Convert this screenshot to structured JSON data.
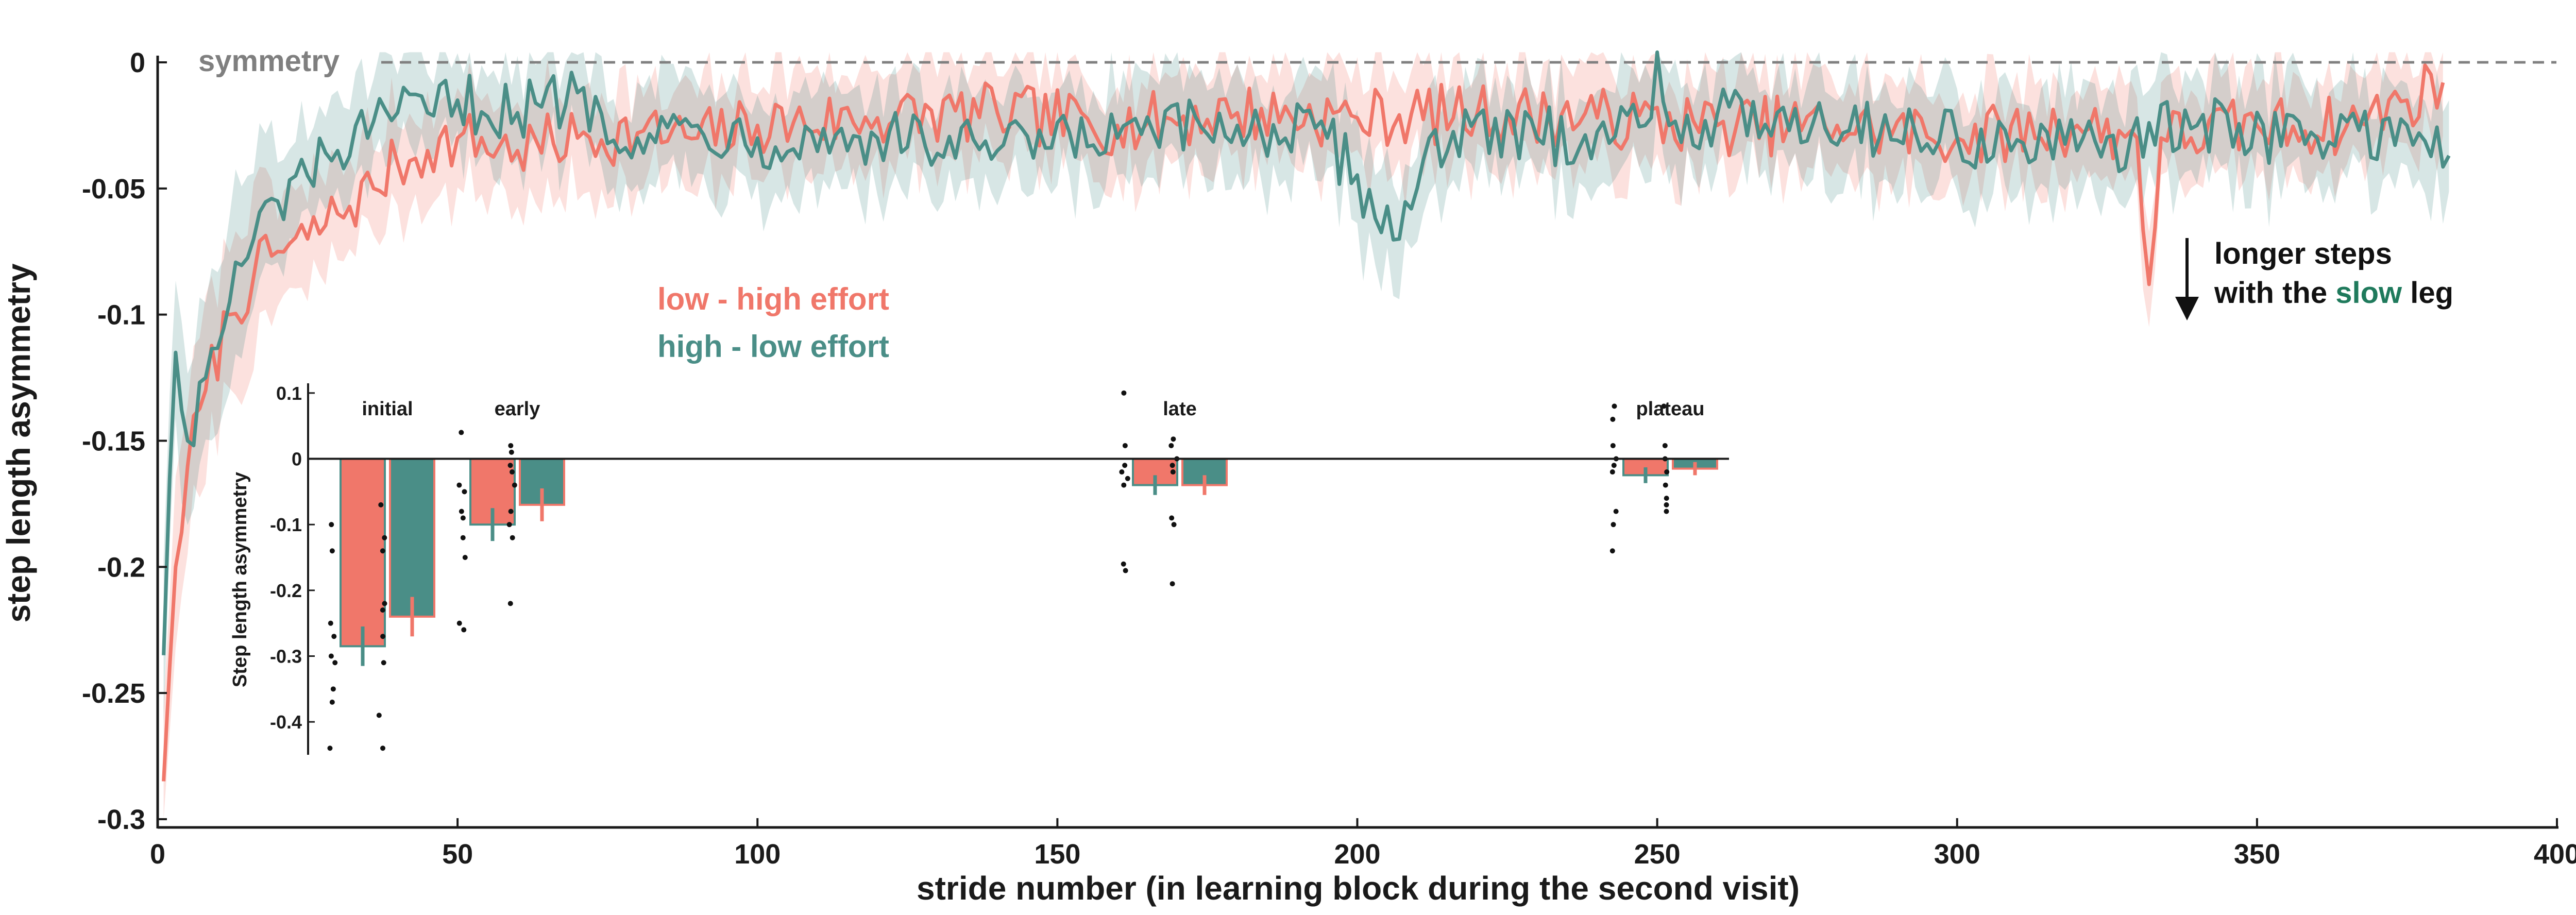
{
  "colors": {
    "low_high": "#F0776A",
    "high_low": "#4A8E87",
    "slow_word": "#1f7a5c",
    "symmetry_line": "#808080",
    "axis": "#1a1a1a"
  },
  "labels": {
    "symmetry": "symmetry",
    "legend_low_high": "low - high effort",
    "legend_high_low": "high - low effort",
    "annotation_line1": "longer steps",
    "annotation_line2_pre": "with the ",
    "annotation_line2_slow": "slow",
    "annotation_line2_post": " leg"
  },
  "chart_data": [
    {
      "type": "line",
      "xlabel": "stride number (in learning block during the second visit)",
      "ylabel": "step length asymmetry",
      "xlim": [
        0,
        400
      ],
      "ylim": [
        -0.3,
        0
      ],
      "xticks": [
        0,
        50,
        100,
        150,
        200,
        250,
        300,
        350,
        400
      ],
      "yticks": [
        -0.3,
        -0.25,
        -0.2,
        -0.15,
        -0.1,
        -0.05,
        0
      ],
      "reference_line": {
        "y": 0,
        "label": "symmetry",
        "style": "dashed"
      },
      "legend_placement": "center-left",
      "annotation": {
        "x": 339,
        "y": -0.1,
        "text": "longer steps with the slow leg",
        "arrow": "down"
      },
      "series": [
        {
          "name": "low - high effort",
          "color": "#F0776A",
          "shaded_error_band": true,
          "keypoints": [
            [
              1,
              -0.285
            ],
            [
              2,
              -0.24
            ],
            [
              3,
              -0.2
            ],
            [
              5,
              -0.16
            ],
            [
              8,
              -0.13
            ],
            [
              12,
              -0.1
            ],
            [
              16,
              -0.085
            ],
            [
              20,
              -0.075
            ],
            [
              25,
              -0.07
            ],
            [
              30,
              -0.06
            ],
            [
              36,
              -0.05
            ],
            [
              40,
              -0.04
            ],
            [
              45,
              -0.035
            ],
            [
              50,
              -0.03
            ],
            [
              60,
              -0.035
            ],
            [
              70,
              -0.03
            ],
            [
              80,
              -0.028
            ],
            [
              90,
              -0.03
            ],
            [
              100,
              -0.025
            ],
            [
              120,
              -0.022
            ],
            [
              140,
              -0.02
            ],
            [
              160,
              -0.025
            ],
            [
              180,
              -0.02
            ],
            [
              200,
              -0.022
            ],
            [
              220,
              -0.02
            ],
            [
              240,
              -0.022
            ],
            [
              260,
              -0.025
            ],
            [
              280,
              -0.025
            ],
            [
              300,
              -0.03
            ],
            [
              320,
              -0.025
            ],
            [
              330,
              -0.03
            ],
            [
              332,
              -0.088
            ],
            [
              334,
              -0.03
            ],
            [
              350,
              -0.025
            ],
            [
              365,
              -0.025
            ],
            [
              375,
              -0.015
            ],
            [
              381,
              -0.008
            ]
          ]
        },
        {
          "name": "high - low effort",
          "color": "#4A8E87",
          "shaded_error_band": true,
          "keypoints": [
            [
              1,
              -0.235
            ],
            [
              2,
              -0.165
            ],
            [
              3,
              -0.115
            ],
            [
              5,
              -0.15
            ],
            [
              8,
              -0.125
            ],
            [
              12,
              -0.095
            ],
            [
              16,
              -0.07
            ],
            [
              20,
              -0.055
            ],
            [
              25,
              -0.045
            ],
            [
              30,
              -0.035
            ],
            [
              35,
              -0.03
            ],
            [
              40,
              -0.02
            ],
            [
              45,
              -0.02
            ],
            [
              50,
              -0.015
            ],
            [
              60,
              -0.02
            ],
            [
              70,
              -0.012
            ],
            [
              80,
              -0.03
            ],
            [
              90,
              -0.025
            ],
            [
              100,
              -0.03
            ],
            [
              120,
              -0.03
            ],
            [
              140,
              -0.035
            ],
            [
              160,
              -0.03
            ],
            [
              180,
              -0.025
            ],
            [
              195,
              -0.03
            ],
            [
              207,
              -0.07
            ],
            [
              212,
              -0.03
            ],
            [
              230,
              -0.03
            ],
            [
              248,
              -0.025
            ],
            [
              250,
              0.005
            ],
            [
              252,
              -0.025
            ],
            [
              270,
              -0.02
            ],
            [
              300,
              -0.03
            ],
            [
              320,
              -0.035
            ],
            [
              340,
              -0.025
            ],
            [
              360,
              -0.03
            ],
            [
              375,
              -0.025
            ],
            [
              382,
              -0.037
            ]
          ]
        }
      ]
    },
    {
      "type": "bar",
      "ylabel": "Step length asymmetry",
      "ylim": [
        -0.45,
        0.15
      ],
      "yticks": [
        0.1,
        0,
        -0.1,
        -0.2,
        -0.3,
        -0.4
      ],
      "categories": [
        "initial",
        "early",
        "late",
        "plateau"
      ],
      "series": [
        {
          "name": "low - high effort",
          "color": "#F0776A",
          "values": [
            -0.285,
            -0.1,
            -0.04,
            -0.025
          ],
          "errors": [
            0.03,
            0.025,
            0.015,
            0.012
          ],
          "points": [
            [
              -0.1,
              -0.14,
              -0.25,
              -0.27,
              -0.3,
              -0.31,
              -0.35,
              -0.37,
              -0.44
            ],
            [
              0.04,
              -0.04,
              -0.05,
              -0.08,
              -0.09,
              -0.12,
              -0.15,
              -0.25,
              -0.26
            ],
            [
              0.1,
              0.02,
              -0.01,
              -0.02,
              -0.03,
              -0.04,
              -0.16,
              -0.17
            ],
            [
              0.08,
              0.06,
              0.02,
              0,
              -0.01,
              -0.02,
              -0.08,
              -0.1,
              -0.14
            ]
          ]
        },
        {
          "name": "high - low effort",
          "color": "#4A8E87",
          "values": [
            -0.24,
            -0.07,
            -0.04,
            -0.015
          ],
          "errors": [
            0.03,
            0.025,
            0.015,
            0.01
          ],
          "points": [
            [
              -0.07,
              -0.12,
              -0.14,
              -0.22,
              -0.23,
              -0.27,
              -0.31,
              -0.39,
              -0.44
            ],
            [
              0.02,
              0.01,
              -0.01,
              -0.02,
              -0.04,
              -0.08,
              -0.1,
              -0.12,
              -0.22
            ],
            [
              0.03,
              0.02,
              0,
              -0.01,
              -0.02,
              -0.09,
              -0.1,
              -0.19
            ],
            [
              0.08,
              0.02,
              0,
              -0.02,
              -0.04,
              -0.06,
              -0.07,
              -0.08
            ]
          ]
        }
      ]
    }
  ]
}
